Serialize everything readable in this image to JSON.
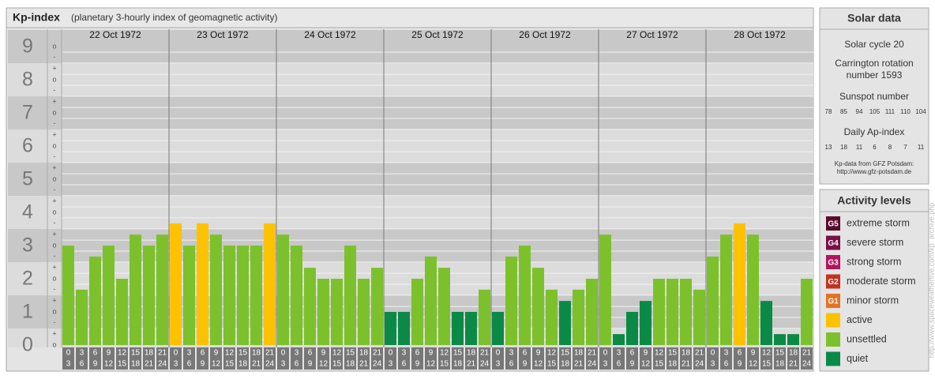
{
  "header": {
    "title": "Kp-index",
    "subtitle": "(planetary 3-hourly index of geomagnetic activity)"
  },
  "chart_data": {
    "type": "bar",
    "ylim": [
      0,
      9.5
    ],
    "yticks": [
      0,
      1,
      2,
      3,
      4,
      5,
      6,
      7,
      8,
      9
    ],
    "yminorticks": [
      {
        "value": 9,
        "label": "o"
      },
      {
        "value": 8.67,
        "label": "-"
      },
      {
        "value": 8.33,
        "label": "+"
      },
      {
        "value": 8,
        "label": "o"
      },
      {
        "value": 7.67,
        "label": "-"
      },
      {
        "value": 7.33,
        "label": "+"
      },
      {
        "value": 7,
        "label": "o"
      },
      {
        "value": 6.67,
        "label": "-"
      },
      {
        "value": 6.33,
        "label": "+"
      },
      {
        "value": 6,
        "label": "o"
      },
      {
        "value": 5.67,
        "label": "-"
      },
      {
        "value": 5.33,
        "label": "+"
      },
      {
        "value": 5,
        "label": "o"
      },
      {
        "value": 4.67,
        "label": "-"
      },
      {
        "value": 4.33,
        "label": "+"
      },
      {
        "value": 4,
        "label": "o"
      },
      {
        "value": 3.67,
        "label": "-"
      },
      {
        "value": 3.33,
        "label": "+"
      },
      {
        "value": 3,
        "label": "o"
      },
      {
        "value": 2.67,
        "label": "-"
      },
      {
        "value": 2.33,
        "label": "+"
      },
      {
        "value": 2,
        "label": "o"
      },
      {
        "value": 1.67,
        "label": "-"
      },
      {
        "value": 1.33,
        "label": "+"
      },
      {
        "value": 1,
        "label": "o"
      },
      {
        "value": 0.67,
        "label": "-"
      },
      {
        "value": 0.33,
        "label": "+"
      },
      {
        "value": 0,
        "label": "o"
      }
    ],
    "hours": [
      [
        "0",
        "3"
      ],
      [
        "3",
        "6"
      ],
      [
        "6",
        "9"
      ],
      [
        "9",
        "12"
      ],
      [
        "12",
        "15"
      ],
      [
        "15",
        "18"
      ],
      [
        "18",
        "21"
      ],
      [
        "21",
        "24"
      ]
    ],
    "days": [
      {
        "date": "22 Oct 1972",
        "values": [
          3,
          1.67,
          2.67,
          3,
          2,
          3.33,
          3,
          3.33
        ],
        "colors": [
          "#7cc12b",
          "#7cc12b",
          "#7cc12b",
          "#7cc12b",
          "#7cc12b",
          "#7cc12b",
          "#7cc12b",
          "#7cc12b"
        ]
      },
      {
        "date": "23 Oct 1972",
        "values": [
          3.67,
          3,
          3.67,
          3.33,
          3,
          3,
          3,
          3.67
        ],
        "colors": [
          "#fcc200",
          "#7cc12b",
          "#fcc200",
          "#7cc12b",
          "#7cc12b",
          "#7cc12b",
          "#7cc12b",
          "#fcc200"
        ]
      },
      {
        "date": "24 Oct 1972",
        "values": [
          3.33,
          3,
          2.33,
          2,
          2,
          3,
          2,
          2.33
        ],
        "colors": [
          "#7cc12b",
          "#7cc12b",
          "#7cc12b",
          "#7cc12b",
          "#7cc12b",
          "#7cc12b",
          "#7cc12b",
          "#7cc12b"
        ]
      },
      {
        "date": "25 Oct 1972",
        "values": [
          1,
          1,
          2,
          2.67,
          2.33,
          1,
          1,
          1.67
        ],
        "colors": [
          "#0b8a47",
          "#0b8a47",
          "#7cc12b",
          "#7cc12b",
          "#7cc12b",
          "#0b8a47",
          "#0b8a47",
          "#7cc12b"
        ]
      },
      {
        "date": "26 Oct 1972",
        "values": [
          1,
          2.67,
          3,
          2.33,
          1.67,
          1.33,
          1.67,
          2
        ],
        "colors": [
          "#0b8a47",
          "#7cc12b",
          "#7cc12b",
          "#7cc12b",
          "#7cc12b",
          "#0b8a47",
          "#7cc12b",
          "#7cc12b"
        ]
      },
      {
        "date": "27 Oct 1972",
        "values": [
          3.33,
          0.33,
          1,
          1.33,
          2,
          2,
          2,
          1.67
        ],
        "colors": [
          "#7cc12b",
          "#0b8a47",
          "#0b8a47",
          "#0b8a47",
          "#7cc12b",
          "#7cc12b",
          "#7cc12b",
          "#7cc12b"
        ]
      },
      {
        "date": "28 Oct 1972",
        "values": [
          2.67,
          3.33,
          3.67,
          3.33,
          1.33,
          0.33,
          0.33,
          2
        ],
        "colors": [
          "#7cc12b",
          "#7cc12b",
          "#fcc200",
          "#7cc12b",
          "#0b8a47",
          "#0b8a47",
          "#0b8a47",
          "#7cc12b"
        ]
      }
    ]
  },
  "solar_data": {
    "title": "Solar data",
    "cycle": "Solar cycle 20",
    "carrington": [
      "Carrington rotation",
      "number 1593"
    ],
    "sunspot_title": "Sunspot number",
    "sunspot": [
      78,
      85,
      94,
      105,
      111,
      110,
      104
    ],
    "ap_title": "Daily Ap-index",
    "ap": [
      13,
      18,
      11,
      6,
      8,
      7,
      11
    ],
    "source": [
      "Kp-data from GFZ Potsdam:",
      "http://www.gfz-potsdam.de"
    ]
  },
  "activity_levels": {
    "title": "Activity levels",
    "items": [
      {
        "code": "G5",
        "label": "extreme storm",
        "color": "#5b0a2a"
      },
      {
        "code": "G4",
        "label": "severe storm",
        "color": "#7b0f45"
      },
      {
        "code": "G3",
        "label": "strong storm",
        "color": "#b3135f"
      },
      {
        "code": "G2",
        "label": "moderate storm",
        "color": "#c3331f"
      },
      {
        "code": "G1",
        "label": "minor storm",
        "color": "#e4731f"
      },
      {
        "label": "active",
        "color": "#fcc200"
      },
      {
        "label": "unsettled",
        "color": "#7cc12b"
      },
      {
        "label": "quiet",
        "color": "#0b8a47"
      }
    ]
  },
  "watermark": "http://www.spaceweatherlive.com/kp_archive.php"
}
